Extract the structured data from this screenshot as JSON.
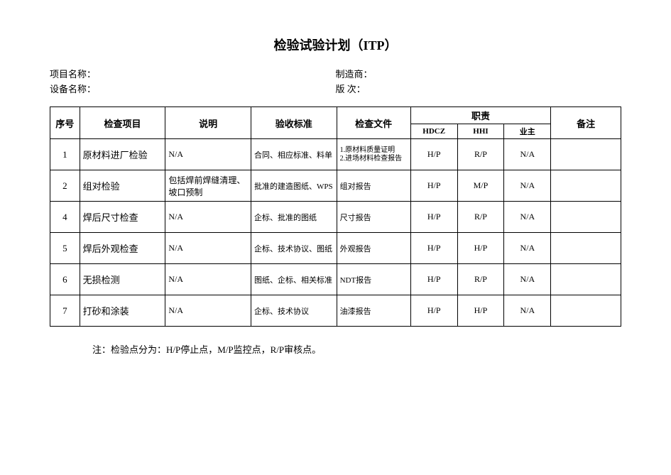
{
  "title": "检验试验计划（ITP）",
  "meta": {
    "project_label": "项目名称：",
    "project_value": "",
    "equipment_label": "设备名称：",
    "equipment_value": "",
    "manufacturer_label": "制造商：",
    "manufacturer_value": "",
    "revision_label": "版  次：",
    "revision_value": ""
  },
  "columns": {
    "seq": "序号",
    "item": "检查项目",
    "desc": "说明",
    "std": "验收标准",
    "doc": "检查文件",
    "resp": "职责",
    "resp_sub": [
      "HDCZ",
      "HHI",
      "业主"
    ],
    "note": "备注"
  },
  "rows": [
    {
      "seq": "1",
      "item": "原材料进厂检验",
      "desc": "N/A",
      "std": "合同、相应标准、料单",
      "doc": "1.原材料质量证明\n2.进场材料检查报告",
      "r1": "H/P",
      "r2": "R/P",
      "r3": "N/A",
      "note": ""
    },
    {
      "seq": "2",
      "item": "组对检验",
      "desc": "包括焊前焊缝清理、坡口预制",
      "std": "批准的建造图纸、WPS",
      "doc": "组对报告",
      "r1": "H/P",
      "r2": "M/P",
      "r3": "N/A",
      "note": ""
    },
    {
      "seq": "4",
      "item": "焊后尺寸检查",
      "desc": "N/A",
      "std": "企标、批准的图纸",
      "doc": "尺寸报告",
      "r1": "H/P",
      "r2": "R/P",
      "r3": "N/A",
      "note": ""
    },
    {
      "seq": "5",
      "item": "焊后外观检查",
      "desc": "N/A",
      "std": "企标、技术协议、图纸",
      "doc": "外观报告",
      "r1": "H/P",
      "r2": "H/P",
      "r3": "N/A",
      "note": ""
    },
    {
      "seq": "6",
      "item": "无损检测",
      "desc": "N/A",
      "std": "图纸、企标、相关标准",
      "doc": "NDT报告",
      "r1": "H/P",
      "r2": "R/P",
      "r3": "N/A",
      "note": ""
    },
    {
      "seq": "7",
      "item": "打砂和涂装",
      "desc": "N/A",
      "std": "企标、技术协议",
      "doc": "油漆报告",
      "r1": "H/P",
      "r2": "H/P",
      "r3": "N/A",
      "note": ""
    }
  ],
  "footnote": "注：检验点分为：H/P停止点，M/P监控点，R/P审核点。"
}
